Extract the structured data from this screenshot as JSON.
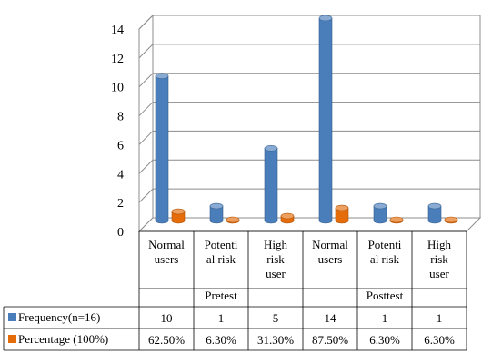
{
  "chart_data": {
    "type": "bar",
    "ylim": [
      0,
      14
    ],
    "yticks": [
      0,
      2,
      4,
      6,
      8,
      10,
      12,
      14
    ],
    "grid": true,
    "categories": [
      [
        "Normal",
        "users"
      ],
      [
        "Potenti",
        "al risk"
      ],
      [
        "High",
        "risk",
        "user"
      ],
      [
        "Normal",
        "users"
      ],
      [
        "Potenti",
        "al risk"
      ],
      [
        "High",
        "risk",
        "user"
      ]
    ],
    "groups": [
      {
        "label": "Pretest",
        "span": 3
      },
      {
        "label": "Posttest",
        "span": 3
      }
    ],
    "series": [
      {
        "name": "Frequency(n=16)",
        "color": "#4a7ebb",
        "values": [
          10,
          1,
          5,
          14,
          1,
          1
        ],
        "table_values": [
          "10",
          "1",
          "5",
          "14",
          "1",
          "1"
        ]
      },
      {
        "name": "Percentage (100%)",
        "color": "#e46c0a",
        "values": [
          0.625,
          0.063,
          0.313,
          0.875,
          0.063,
          0.063
        ],
        "table_values": [
          "62.50%",
          "6.30%",
          "31.30%",
          "87.50%",
          "6.30%",
          "6.30%"
        ]
      }
    ]
  }
}
